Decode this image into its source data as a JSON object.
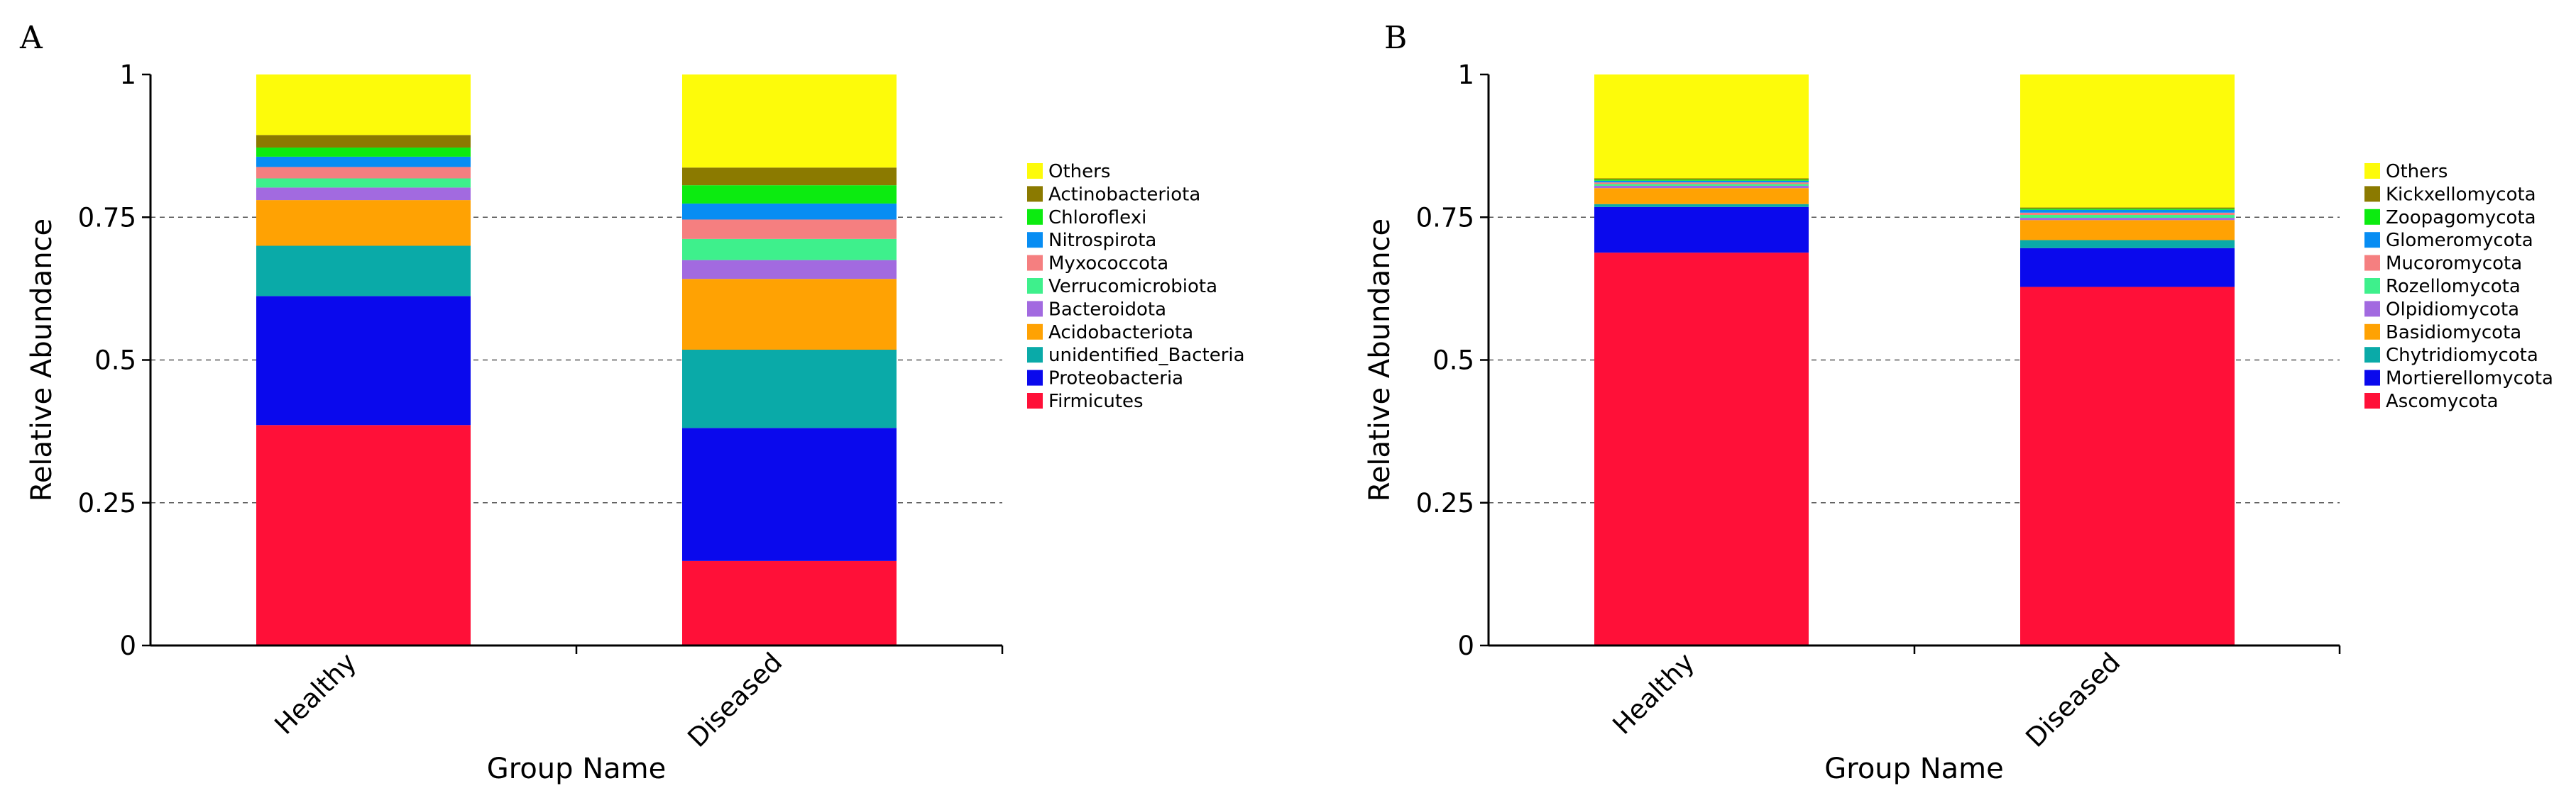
{
  "chart_data": [
    {
      "panel": "A",
      "type": "bar",
      "stacked": true,
      "xlabel": "Group Name",
      "ylabel": "Relative Abundance",
      "ylim": [
        0,
        1
      ],
      "yticks": [
        "0",
        "0.25",
        "0.5",
        "0.75",
        "1"
      ],
      "grid": "dashed horizontal",
      "legend_position": "right",
      "categories": [
        "Healthy",
        "Diseased"
      ],
      "series": [
        {
          "name": "Firmicutes",
          "color": "#ff1038",
          "values": [
            0.386,
            0.148
          ]
        },
        {
          "name": "Proteobacteria",
          "color": "#0a09ed",
          "values": [
            0.226,
            0.233
          ]
        },
        {
          "name": "unidentified_Bacteria",
          "color": "#0aaaa8",
          "values": [
            0.088,
            0.137
          ]
        },
        {
          "name": "Acidobacteriota",
          "color": "#ffa203",
          "values": [
            0.08,
            0.124
          ]
        },
        {
          "name": "Bacteroidota",
          "color": "#a26ae0",
          "values": [
            0.022,
            0.033
          ]
        },
        {
          "name": "Verrucomicrobiota",
          "color": "#3ef08c",
          "values": [
            0.016,
            0.037
          ]
        },
        {
          "name": "Myxococcota",
          "color": "#f57f80",
          "values": [
            0.02,
            0.034
          ]
        },
        {
          "name": "Nitrospirota",
          "color": "#078df3",
          "values": [
            0.018,
            0.028
          ]
        },
        {
          "name": "Chloroflexi",
          "color": "#0ceb10",
          "values": [
            0.016,
            0.032
          ]
        },
        {
          "name": "Actinobacteriota",
          "color": "#8b7a00",
          "values": [
            0.022,
            0.031
          ]
        },
        {
          "name": "Others",
          "color": "#fdfb0a",
          "values": [
            0.106,
            0.163
          ]
        }
      ]
    },
    {
      "panel": "B",
      "type": "bar",
      "stacked": true,
      "xlabel": "Group Name",
      "ylabel": "Relative Abundance",
      "ylim": [
        0,
        1
      ],
      "yticks": [
        "0",
        "0.25",
        "0.5",
        "0.75",
        "1"
      ],
      "grid": "dashed horizontal",
      "legend_position": "right",
      "categories": [
        "Healthy",
        "Diseased"
      ],
      "series": [
        {
          "name": "Ascomycota",
          "color": "#ff1038",
          "values": [
            0.688,
            0.628
          ]
        },
        {
          "name": "Mortierellomycota",
          "color": "#0a09ed",
          "values": [
            0.08,
            0.068
          ]
        },
        {
          "name": "Chytridiomycota",
          "color": "#0aaaa8",
          "values": [
            0.005,
            0.014
          ]
        },
        {
          "name": "Basidiomycota",
          "color": "#ffa203",
          "values": [
            0.028,
            0.035
          ]
        },
        {
          "name": "Olpidiomycota",
          "color": "#a26ae0",
          "values": [
            0.004,
            0.004
          ]
        },
        {
          "name": "Rozellomycota",
          "color": "#3ef08c",
          "values": [
            0.003,
            0.005
          ]
        },
        {
          "name": "Mucoromycota",
          "color": "#f57f80",
          "values": [
            0.003,
            0.004
          ]
        },
        {
          "name": "Glomeromycota",
          "color": "#078df3",
          "values": [
            0.003,
            0.005
          ]
        },
        {
          "name": "Zoopagomycota",
          "color": "#0ceb10",
          "values": [
            0.002,
            0.002
          ]
        },
        {
          "name": "Kickxellomycota",
          "color": "#8b7a00",
          "values": [
            0.002,
            0.002
          ]
        },
        {
          "name": "Others",
          "color": "#fdfb0a",
          "values": [
            0.182,
            0.233
          ]
        }
      ]
    }
  ]
}
